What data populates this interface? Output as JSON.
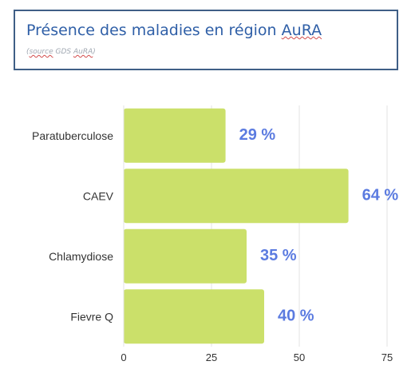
{
  "header": {
    "title_prefix": "Présence des maladies en région ",
    "title_flag": "AuRA",
    "subtitle_open": "(",
    "subtitle_source": "source",
    "subtitle_middle": " GDS ",
    "subtitle_flag": "AuRA",
    "subtitle_close": ")"
  },
  "colors": {
    "bar": "#cbe06a",
    "value_label": "#5b7be0",
    "grid": "#e3e3e3",
    "axis_text": "#333333",
    "title": "#2f5fa7",
    "border": "#3f5f86"
  },
  "chart_data": {
    "type": "bar",
    "orientation": "horizontal",
    "categories": [
      "Paratuberculose",
      "CAEV",
      "Chlamydiose",
      "Fievre Q"
    ],
    "values": [
      29,
      64,
      35,
      40
    ],
    "value_labels": [
      "29 %",
      "64 %",
      "35 %",
      "40 %"
    ],
    "x_ticks": [
      "0",
      "25",
      "50",
      "75"
    ],
    "xlim": [
      0,
      75
    ],
    "grid": true,
    "xlabel": "",
    "ylabel": ""
  }
}
